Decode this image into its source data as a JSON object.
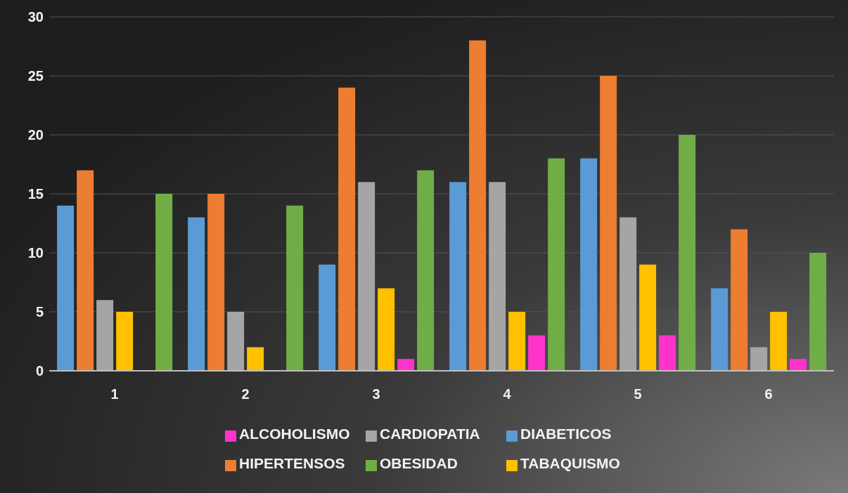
{
  "chart_data": {
    "type": "bar",
    "categories": [
      "1",
      "2",
      "3",
      "4",
      "5",
      "6"
    ],
    "series": [
      {
        "name": "DIABETICOS",
        "color": "#5b9bd5",
        "values": [
          14,
          13,
          9,
          16,
          18,
          7
        ]
      },
      {
        "name": "HIPERTENSOS",
        "color": "#ed7d31",
        "values": [
          17,
          15,
          24,
          28,
          25,
          12
        ]
      },
      {
        "name": "CARDIOPATIA",
        "color": "#a5a5a5",
        "values": [
          6,
          5,
          16,
          16,
          13,
          2
        ]
      },
      {
        "name": "TABAQUISMO",
        "color": "#ffc000",
        "values": [
          5,
          2,
          7,
          5,
          9,
          5
        ]
      },
      {
        "name": "ALCOHOLISMO",
        "color": "#ff33cc",
        "values": [
          0,
          0,
          1,
          3,
          3,
          1
        ]
      },
      {
        "name": "OBESIDAD",
        "color": "#70ad47",
        "values": [
          15,
          14,
          17,
          18,
          20,
          10
        ]
      }
    ],
    "ylim": [
      0,
      30
    ],
    "yticks": [
      0,
      5,
      10,
      15,
      20,
      25,
      30
    ],
    "grid": "y",
    "legend": "bottom"
  }
}
